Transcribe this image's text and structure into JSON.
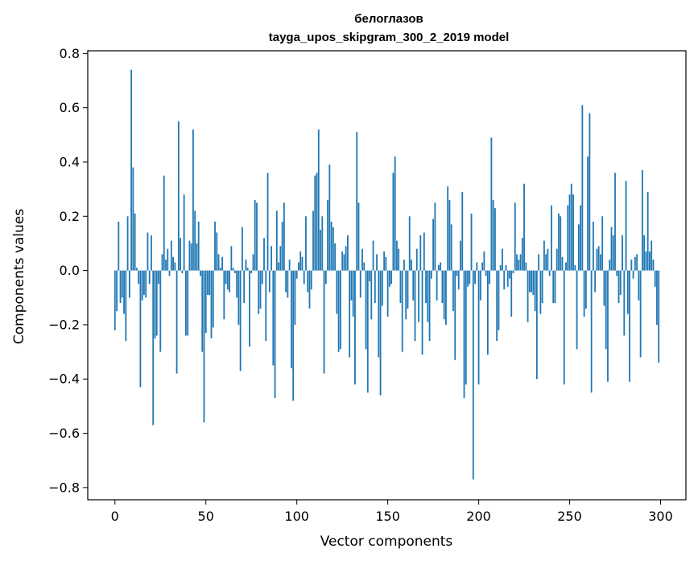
{
  "chart_data": {
    "type": "bar",
    "title": "белоглазов",
    "subtitle": "tayga_upos_skipgram_300_2_2019 model",
    "xlabel": "Vector components",
    "ylabel": "Components values",
    "xlim": [
      -14.95,
      313.95
    ],
    "ylim": [
      -0.845,
      0.81
    ],
    "xticks": [
      0,
      50,
      100,
      150,
      200,
      250,
      300
    ],
    "xtick_labels": [
      "0",
      "50",
      "100",
      "150",
      "200",
      "250",
      "300"
    ],
    "yticks": [
      -0.8,
      -0.6,
      -0.4,
      -0.2,
      0.0,
      0.2,
      0.4,
      0.6,
      0.8
    ],
    "ytick_labels": [
      "−0.8",
      "−0.6",
      "−0.4",
      "−0.2",
      "0.0",
      "0.2",
      "0.4",
      "0.6",
      "0.8"
    ],
    "bar_color": "#1f77b4",
    "grid": false,
    "values": [
      -0.22,
      -0.15,
      0.18,
      -0.12,
      -0.1,
      -0.16,
      -0.26,
      0.2,
      -0.1,
      0.74,
      0.38,
      0.21,
      0.01,
      -0.05,
      -0.43,
      -0.11,
      -0.09,
      -0.1,
      0.14,
      -0.05,
      0.13,
      -0.57,
      -0.25,
      -0.24,
      -0.05,
      -0.3,
      0.06,
      0.35,
      0.04,
      0.08,
      -0.02,
      0.11,
      0.05,
      0.03,
      -0.38,
      0.55,
      0.12,
      -0.01,
      0.28,
      -0.24,
      -0.24,
      0.11,
      0.1,
      0.52,
      0.22,
      0.1,
      0.18,
      -0.02,
      -0.3,
      -0.56,
      -0.23,
      -0.09,
      -0.09,
      -0.25,
      -0.21,
      0.18,
      0.14,
      0.06,
      0.01,
      0.05,
      -0.18,
      -0.05,
      -0.07,
      -0.08,
      0.09,
      0.01,
      -0.01,
      -0.1,
      -0.2,
      -0.37,
      0.16,
      -0.12,
      0.04,
      0.01,
      -0.28,
      -0.01,
      0.06,
      0.26,
      0.25,
      -0.16,
      -0.14,
      -0.05,
      0.12,
      -0.26,
      0.36,
      -0.08,
      0.09,
      -0.35,
      -0.47,
      0.22,
      0.03,
      0.09,
      0.18,
      0.25,
      -0.08,
      -0.1,
      0.04,
      -0.36,
      -0.48,
      -0.2,
      -0.03,
      0.03,
      0.07,
      0.05,
      -0.05,
      0.2,
      -0.08,
      -0.14,
      -0.07,
      0.22,
      0.35,
      0.36,
      0.52,
      0.15,
      0.2,
      -0.38,
      -0.05,
      0.26,
      0.39,
      0.18,
      0.16,
      0.1,
      -0.16,
      -0.3,
      -0.29,
      0.07,
      0.06,
      0.09,
      0.13,
      -0.32,
      -0.11,
      -0.17,
      -0.42,
      0.51,
      0.25,
      -0.1,
      0.08,
      0.03,
      -0.29,
      -0.45,
      -0.04,
      -0.18,
      0.11,
      -0.12,
      0.06,
      -0.32,
      -0.46,
      -0.13,
      0.07,
      0.05,
      -0.17,
      -0.06,
      -0.05,
      0.36,
      0.42,
      0.11,
      0.08,
      -0.12,
      -0.3,
      0.04,
      -0.18,
      -0.14,
      0.2,
      0.04,
      -0.11,
      -0.26,
      0.08,
      -0.19,
      0.13,
      -0.31,
      0.14,
      -0.12,
      -0.19,
      -0.26,
      -0.03,
      0.19,
      0.25,
      -0.11,
      0.02,
      0.03,
      -0.12,
      -0.18,
      -0.2,
      0.31,
      0.26,
      0.17,
      -0.15,
      -0.33,
      -0.02,
      -0.07,
      0.11,
      0.29,
      -0.47,
      -0.42,
      -0.06,
      -0.05,
      0.21,
      -0.77,
      -0.05,
      0.03,
      -0.42,
      -0.11,
      0.03,
      0.07,
      -0.02,
      -0.31,
      -0.05,
      0.49,
      0.26,
      0.23,
      -0.26,
      -0.22,
      0.02,
      0.08,
      -0.07,
      0.02,
      -0.06,
      -0.03,
      -0.17,
      -0.01,
      0.25,
      0.06,
      0.04,
      0.06,
      0.12,
      0.32,
      0.03,
      -0.19,
      -0.08,
      -0.08,
      -0.09,
      -0.15,
      -0.4,
      0.06,
      -0.16,
      -0.12,
      0.11,
      0.06,
      0.08,
      -0.02,
      0.24,
      -0.12,
      -0.12,
      0.08,
      0.21,
      0.2,
      0.05,
      -0.42,
      0.03,
      0.24,
      0.28,
      0.32,
      0.28,
      0.02,
      -0.29,
      0.17,
      0.24,
      0.61,
      -0.17,
      -0.14,
      0.42,
      0.58,
      -0.45,
      0.18,
      -0.08,
      0.08,
      0.09,
      0.06,
      0.2,
      -0.13,
      -0.29,
      -0.41,
      0.04,
      0.16,
      0.13,
      0.36,
      -0.02,
      -0.12,
      -0.09,
      0.13,
      -0.24,
      0.33,
      -0.16,
      -0.41,
      0.04,
      -0.03,
      0.05,
      0.06,
      -0.11,
      -0.32,
      0.37,
      0.13,
      0.07,
      0.29,
      0.07,
      0.11,
      0.04,
      -0.06,
      -0.2,
      -0.34
    ]
  }
}
